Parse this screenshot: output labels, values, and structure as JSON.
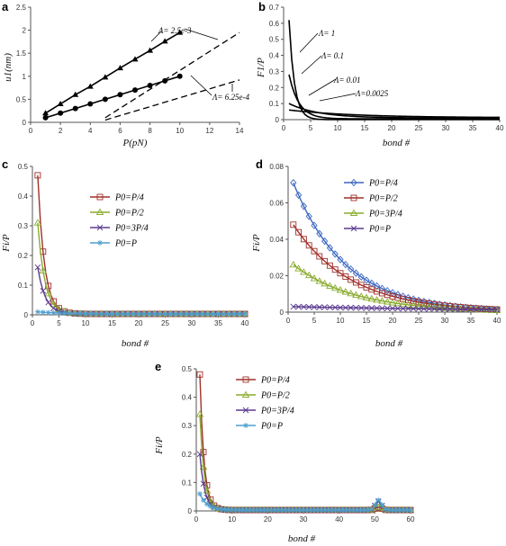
{
  "colors": {
    "axis": "#555555",
    "dark": "#000000",
    "red": "#a0302a",
    "green": "#8aab2e",
    "purple": "#5b3a8f",
    "blue": "#4f9fcf",
    "blue_d": "#3a66c2",
    "grey": "#aaaaaa"
  },
  "panels": {
    "a": {
      "label": "a",
      "xlabel": "P(pN)",
      "ylabel": "u1(nm)",
      "ann1": "Λ= 2.5e-3",
      "ann2": "Λ= 6.25e-4"
    },
    "b": {
      "label": "b",
      "xlabel": "bond #",
      "ylabel": "F1/P",
      "ann": [
        "Λ= 1",
        "Λ= 0.1",
        "Λ= 0.01",
        "Λ=0.0025"
      ]
    },
    "c": {
      "label": "c",
      "xlabel": "bond #",
      "ylabel": "Fi/P",
      "legend": [
        "P0=P/4",
        "P0=P/2",
        "P0=3P/4",
        "P0=P"
      ]
    },
    "d": {
      "label": "d",
      "xlabel": "bond #",
      "ylabel": "Fi/P",
      "legend": [
        "P0=P/4",
        "P0=P/2",
        "P0=3P/4",
        "P0=P"
      ]
    },
    "e": {
      "label": "e",
      "xlabel": "bond #",
      "ylabel": "Fi/P",
      "legend": [
        "P0=P/4",
        "P0=P/2",
        "P0=3P/4",
        "P0=P"
      ]
    }
  },
  "chart_data": [
    {
      "id": "a",
      "type": "line",
      "xlim": [
        0,
        14
      ],
      "ylim": [
        0,
        2.5
      ],
      "xticks": [
        "0",
        "2",
        "4",
        "6",
        "8",
        "10",
        "12",
        "14"
      ],
      "yticks": [
        "0",
        "0.5",
        "1",
        "1.5",
        "2",
        "2.5"
      ],
      "series": [
        {
          "marker": "triangle",
          "x": [
            1,
            2,
            3,
            4,
            5,
            6,
            7,
            8,
            9,
            10
          ],
          "y": [
            0.2,
            0.4,
            0.6,
            0.78,
            0.98,
            1.18,
            1.37,
            1.56,
            1.76,
            1.95
          ]
        },
        {
          "marker": "circle",
          "x": [
            1,
            2,
            3,
            4,
            5,
            6,
            7,
            8,
            9,
            10
          ],
          "y": [
            0.1,
            0.2,
            0.3,
            0.4,
            0.5,
            0.6,
            0.7,
            0.8,
            0.9,
            1.0
          ]
        },
        {
          "style": "dashed",
          "x": [
            5,
            14
          ],
          "y": [
            0.1,
            1.95
          ]
        },
        {
          "style": "dashed",
          "x": [
            5,
            14
          ],
          "y": [
            0.05,
            0.92
          ]
        }
      ]
    },
    {
      "id": "b",
      "type": "line",
      "xlim": [
        0,
        40
      ],
      "ylim": [
        0,
        0.7
      ],
      "xticks": [
        "0",
        "5",
        "10",
        "15",
        "20",
        "25",
        "30",
        "35",
        "40"
      ],
      "yticks": [
        "0",
        "0.1",
        "0.2",
        "0.3",
        "0.4",
        "0.5",
        "0.6",
        "0.7"
      ],
      "series": [
        {
          "start": 0.62,
          "decay": 1.0,
          "tail": 0.0
        },
        {
          "start": 0.28,
          "decay": 0.55,
          "tail": 0.005
        },
        {
          "start": 0.1,
          "decay": 0.18,
          "tail": 0.01
        },
        {
          "start": 0.06,
          "decay": 0.08,
          "tail": 0.012
        }
      ]
    },
    {
      "id": "c",
      "type": "line",
      "xlim": [
        0,
        40
      ],
      "ylim": [
        0,
        0.5
      ],
      "xticks": [
        "0",
        "5",
        "10",
        "15",
        "20",
        "25",
        "30",
        "35",
        "40"
      ],
      "yticks": [
        "0",
        "0.1",
        "0.2",
        "0.3",
        "0.4",
        "0.5"
      ],
      "series": [
        {
          "name": "P0=P/4",
          "start": 0.47,
          "decay": 0.8,
          "tail": 0.003
        },
        {
          "name": "P0=P/2",
          "start": 0.31,
          "decay": 0.75,
          "tail": 0.003
        },
        {
          "name": "P0=3P/4",
          "start": 0.16,
          "decay": 0.7,
          "tail": 0.003
        },
        {
          "name": "P0=P",
          "start": 0.01,
          "decay": 0.2,
          "tail": 0.003
        }
      ]
    },
    {
      "id": "d",
      "type": "line",
      "xlim": [
        0,
        40
      ],
      "ylim": [
        0,
        0.08
      ],
      "xticks": [
        "0",
        "5",
        "10",
        "15",
        "20",
        "25",
        "30",
        "35",
        "40"
      ],
      "yticks": [
        "0",
        "0.02",
        "0.04",
        "0.06",
        "0.08"
      ],
      "series": [
        {
          "name": "P0=P/4",
          "start": 0.071,
          "decay": 0.1,
          "tail": 0.0
        },
        {
          "name": "P0=P/2",
          "start": 0.048,
          "decay": 0.09,
          "tail": 0.0
        },
        {
          "name": "P0=3P/4",
          "start": 0.026,
          "decay": 0.085,
          "tail": 0.0
        },
        {
          "name": "P0=P",
          "start": 0.003,
          "decay": 0.02,
          "tail": 0.0
        }
      ]
    },
    {
      "id": "e",
      "type": "line",
      "xlim": [
        0,
        60
      ],
      "ylim": [
        0,
        0.5
      ],
      "xticks": [
        "0",
        "10",
        "20",
        "30",
        "40",
        "50",
        "60"
      ],
      "yticks": [
        "0",
        "0.1",
        "0.2",
        "0.3",
        "0.4",
        "0.5"
      ],
      "series": [
        {
          "name": "P0=P/4",
          "start": 0.48,
          "decay": 0.85,
          "tail": 0.003,
          "bump": 0.01
        },
        {
          "name": "P0=P/2",
          "start": 0.34,
          "decay": 0.8,
          "tail": 0.003,
          "bump": 0.02
        },
        {
          "name": "P0=3P/4",
          "start": 0.2,
          "decay": 0.75,
          "tail": 0.003,
          "bump": 0.03
        },
        {
          "name": "P0=P",
          "start": 0.06,
          "decay": 0.5,
          "tail": 0.003,
          "bump": 0.035
        }
      ]
    }
  ]
}
